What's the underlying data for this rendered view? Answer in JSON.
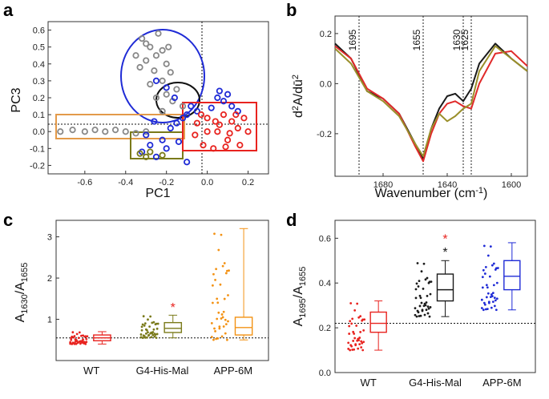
{
  "panels": {
    "a": "a",
    "b": "b",
    "c": "c",
    "d": "d"
  },
  "chart_data": [
    {
      "panel": "a",
      "type": "scatter",
      "xlabel": "PC1",
      "ylabel": "PC3",
      "xlim": [
        -0.78,
        0.3
      ],
      "ylim": [
        -0.25,
        0.65
      ],
      "xticks": [
        "-0.6",
        "-0.4",
        "-0.2",
        "0.0",
        "0.2"
      ],
      "yticks": [
        "-0.2",
        "-0.1",
        "0.0",
        "0.1",
        "0.2",
        "0.3",
        "0.4",
        "0.5",
        "0.6"
      ],
      "series": [
        {
          "color": "#888888",
          "points": [
            [
              -0.72,
              0.0
            ],
            [
              -0.66,
              0.01
            ],
            [
              -0.6,
              0.0
            ],
            [
              -0.55,
              0.01
            ],
            [
              -0.5,
              0.0
            ],
            [
              -0.45,
              0.01
            ],
            [
              -0.4,
              0.0
            ],
            [
              -0.35,
              -0.01
            ],
            [
              -0.3,
              0.0
            ],
            [
              -0.32,
              0.55
            ],
            [
              -0.28,
              0.5
            ],
            [
              -0.25,
              0.45
            ],
            [
              -0.22,
              0.48
            ],
            [
              -0.3,
              0.42
            ],
            [
              -0.2,
              0.4
            ],
            [
              -0.26,
              0.36
            ],
            [
              -0.18,
              0.35
            ],
            [
              -0.22,
              0.3
            ],
            [
              -0.28,
              0.28
            ],
            [
              -0.15,
              0.25
            ],
            [
              -0.2,
              0.22
            ],
            [
              -0.25,
              0.2
            ],
            [
              -0.17,
              0.18
            ],
            [
              -0.12,
              0.15
            ],
            [
              -0.22,
              0.12
            ],
            [
              -0.3,
              0.52
            ],
            [
              -0.35,
              0.45
            ],
            [
              -0.24,
              0.58
            ],
            [
              -0.19,
              0.5
            ],
            [
              -0.33,
              0.38
            ]
          ]
        },
        {
          "color": "#1f2bd6",
          "points": [
            [
              -0.32,
              -0.12
            ],
            [
              -0.28,
              -0.08
            ],
            [
              -0.25,
              -0.15
            ],
            [
              -0.22,
              -0.05
            ],
            [
              -0.2,
              -0.1
            ],
            [
              -0.18,
              0.02
            ],
            [
              -0.15,
              0.05
            ],
            [
              -0.12,
              0.08
            ],
            [
              -0.1,
              0.1
            ],
            [
              -0.08,
              0.15
            ],
            [
              0.05,
              0.2
            ],
            [
              0.08,
              0.18
            ],
            [
              0.1,
              0.22
            ],
            [
              0.12,
              0.15
            ],
            [
              0.15,
              0.12
            ],
            [
              -0.25,
              0.3
            ],
            [
              -0.2,
              0.26
            ],
            [
              -0.16,
              0.2
            ],
            [
              -0.3,
              -0.02
            ],
            [
              -0.1,
              -0.18
            ],
            [
              0.02,
              0.14
            ],
            [
              0.06,
              0.24
            ],
            [
              -0.05,
              0.12
            ],
            [
              -0.14,
              -0.06
            ],
            [
              -0.26,
              0.06
            ]
          ]
        },
        {
          "color": "#e8231f",
          "points": [
            [
              -0.05,
              0.05
            ],
            [
              0.0,
              0.08
            ],
            [
              0.05,
              0.0
            ],
            [
              0.1,
              -0.05
            ],
            [
              0.15,
              0.02
            ],
            [
              0.18,
              0.08
            ],
            [
              -0.02,
              -0.08
            ],
            [
              0.03,
              -0.1
            ],
            [
              0.08,
              0.1
            ],
            [
              0.12,
              0.06
            ],
            [
              0.16,
              -0.08
            ],
            [
              -0.06,
              -0.02
            ],
            [
              0.0,
              0.0
            ],
            [
              0.06,
              0.04
            ],
            [
              0.11,
              -0.01
            ],
            [
              0.2,
              0.0
            ],
            [
              0.14,
              0.1
            ],
            [
              -0.03,
              0.1
            ],
            [
              0.09,
              -0.09
            ],
            [
              0.04,
              0.06
            ]
          ]
        },
        {
          "color": "#7a7a1a",
          "points": [
            [
              -0.33,
              -0.13
            ],
            [
              -0.3,
              -0.15
            ],
            [
              -0.28,
              -0.12
            ],
            [
              -0.22,
              -0.14
            ]
          ]
        }
      ]
    },
    {
      "panel": "b",
      "type": "line",
      "xlabel": "Wavenumber (cm-1)",
      "ylabel": "d2A/dū2",
      "xlim": [
        1710,
        1590
      ],
      "ylim": [
        -0.37,
        0.27
      ],
      "xticks": [
        "1680",
        "1640",
        "1600"
      ],
      "yticks": [
        "-0.2",
        "0.0",
        "0.2"
      ],
      "vlines": [
        1695,
        1655,
        1630,
        1625
      ],
      "vline_labels": [
        "1695",
        "1655",
        "1630",
        "1625"
      ],
      "series": [
        {
          "color": "#1a1a1a",
          "x": [
            1710,
            1700,
            1690,
            1680,
            1670,
            1660,
            1655,
            1650,
            1645,
            1640,
            1635,
            1630,
            1625,
            1620,
            1610,
            1600,
            1590
          ],
          "y": [
            0.16,
            0.1,
            -0.03,
            -0.06,
            -0.12,
            -0.24,
            -0.3,
            -0.18,
            -0.1,
            -0.05,
            -0.04,
            -0.07,
            -0.02,
            0.08,
            0.16,
            0.1,
            0.05
          ]
        },
        {
          "color": "#e02a2a",
          "x": [
            1710,
            1700,
            1690,
            1680,
            1670,
            1660,
            1655,
            1650,
            1645,
            1640,
            1635,
            1630,
            1625,
            1620,
            1610,
            1600,
            1590
          ],
          "y": [
            0.15,
            0.1,
            -0.02,
            -0.06,
            -0.12,
            -0.25,
            -0.31,
            -0.2,
            -0.12,
            -0.08,
            -0.07,
            -0.09,
            -0.1,
            0.0,
            0.12,
            0.13,
            0.07
          ]
        },
        {
          "color": "#9a8f2a",
          "x": [
            1710,
            1700,
            1690,
            1680,
            1670,
            1660,
            1655,
            1650,
            1645,
            1640,
            1635,
            1630,
            1625,
            1620,
            1610,
            1600,
            1590
          ],
          "y": [
            0.14,
            0.08,
            -0.03,
            -0.07,
            -0.13,
            -0.24,
            -0.29,
            -0.18,
            -0.12,
            -0.15,
            -0.13,
            -0.1,
            -0.08,
            0.05,
            0.15,
            0.1,
            0.05
          ]
        }
      ]
    },
    {
      "panel": "c",
      "type": "box",
      "ylabel": "A1630/A1655",
      "ylim": [
        0,
        3.4
      ],
      "yticks": [
        "1",
        "2",
        "3"
      ],
      "categories": [
        "WT",
        "G4-His-Mal",
        "APP-6M"
      ],
      "reference_line": 0.55,
      "groups": [
        {
          "color": "#e8231f",
          "median": 0.55,
          "q1": 0.48,
          "q3": 0.62,
          "whisker_low": 0.4,
          "whisker_high": 0.7
        },
        {
          "color": "#7a7a1a",
          "median": 0.78,
          "q1": 0.68,
          "q3": 0.92,
          "whisker_low": 0.55,
          "whisker_high": 1.1
        },
        {
          "color": "#f39214",
          "median": 0.8,
          "q1": 0.62,
          "q3": 1.05,
          "whisker_low": 0.5,
          "whisker_high": 3.2
        }
      ],
      "annotations": [
        {
          "text": "*",
          "category": "G4-His-Mal",
          "value": 1.3,
          "color": "#e8231f"
        }
      ]
    },
    {
      "panel": "d",
      "type": "box",
      "ylabel": "A1695/A1655",
      "ylim": [
        0,
        0.68
      ],
      "yticks": [
        "0.0",
        "0.2",
        "0.4",
        "0.6"
      ],
      "categories": [
        "WT",
        "G4-His-Mal",
        "APP-6M"
      ],
      "reference_line": 0.22,
      "groups": [
        {
          "color": "#e8231f",
          "median": 0.22,
          "q1": 0.18,
          "q3": 0.27,
          "whisker_low": 0.1,
          "whisker_high": 0.32
        },
        {
          "color": "#1a1a1a",
          "median": 0.37,
          "q1": 0.32,
          "q3": 0.44,
          "whisker_low": 0.25,
          "whisker_high": 0.5
        },
        {
          "color": "#1f2bd6",
          "median": 0.43,
          "q1": 0.37,
          "q3": 0.5,
          "whisker_low": 0.28,
          "whisker_high": 0.58
        }
      ],
      "annotations": [
        {
          "text": "*",
          "category": "G4-His-Mal",
          "value": 0.6,
          "color": "#e8231f"
        },
        {
          "text": "*",
          "category": "G4-His-Mal",
          "value": 0.54,
          "color": "#1a1a1a"
        }
      ]
    }
  ]
}
